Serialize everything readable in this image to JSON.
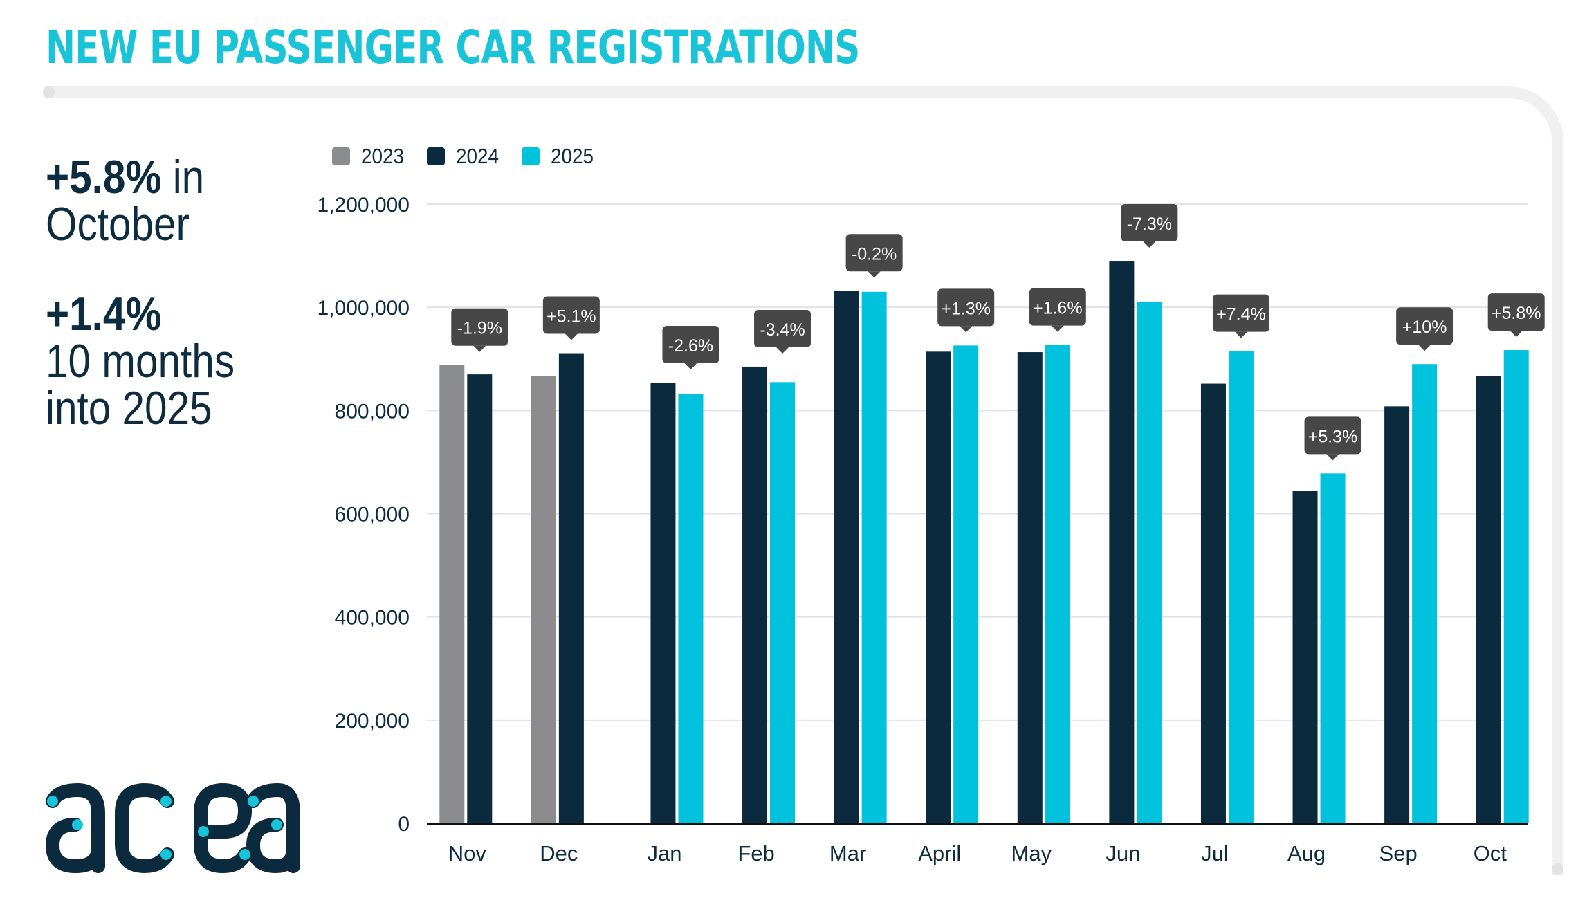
{
  "header": {
    "title": "NEW EU PASSENGER CAR REGISTRATIONS"
  },
  "summary": {
    "kpi1": {
      "value": "+5.8%",
      "suffix": " in",
      "line2": "October"
    },
    "kpi2": {
      "value": "+1.4%",
      "line2": "10 months",
      "line3": "into 2025"
    }
  },
  "logo": {
    "text": "acea"
  },
  "colors": {
    "accent": "#19c3d8",
    "series_2023": "#8a8c8e",
    "series_2024": "#0b2a3e",
    "series_2025": "#00c2dc",
    "annotation_bg": "#474747",
    "text": "#0d2c40",
    "grid": "#e3e3e3",
    "frame": "#f0f0f0"
  },
  "chart_data": {
    "type": "bar",
    "title": "NEW EU PASSENGER CAR REGISTRATIONS",
    "xlabel": "",
    "ylabel": "",
    "ylim": [
      0,
      1200000
    ],
    "yticks": [
      0,
      200000,
      400000,
      600000,
      800000,
      1000000,
      1200000
    ],
    "ytick_labels": [
      "0",
      "200,000",
      "400,000",
      "600,000",
      "800,000",
      "1,000,000",
      "1,200,000"
    ],
    "grid": true,
    "legend_position": "top-left",
    "categories": [
      "Nov",
      "Dec",
      "Jan",
      "Feb",
      "Mar",
      "April",
      "May",
      "Jun",
      "Jul",
      "Aug",
      "Sep",
      "Oct"
    ],
    "series": [
      {
        "name": "2023",
        "color": "#8a8c8e",
        "values": [
          888000,
          867000,
          null,
          null,
          null,
          null,
          null,
          null,
          null,
          null,
          null,
          null
        ]
      },
      {
        "name": "2024",
        "color": "#0b2a3e",
        "values": [
          870000,
          911000,
          854000,
          885000,
          1032000,
          914000,
          913000,
          1090000,
          852000,
          644000,
          808000,
          867000
        ]
      },
      {
        "name": "2025",
        "color": "#00c2dc",
        "values": [
          null,
          null,
          832000,
          855000,
          1030000,
          926000,
          927000,
          1011000,
          915000,
          678000,
          890000,
          917000
        ]
      }
    ],
    "annotations": [
      "-1.9%",
      "+5.1%",
      "-2.6%",
      "-3.4%",
      "-0.2%",
      "+1.3%",
      "+1.6%",
      "-7.3%",
      "+7.4%",
      "+5.3%",
      "+10%",
      "+5.8%"
    ]
  }
}
